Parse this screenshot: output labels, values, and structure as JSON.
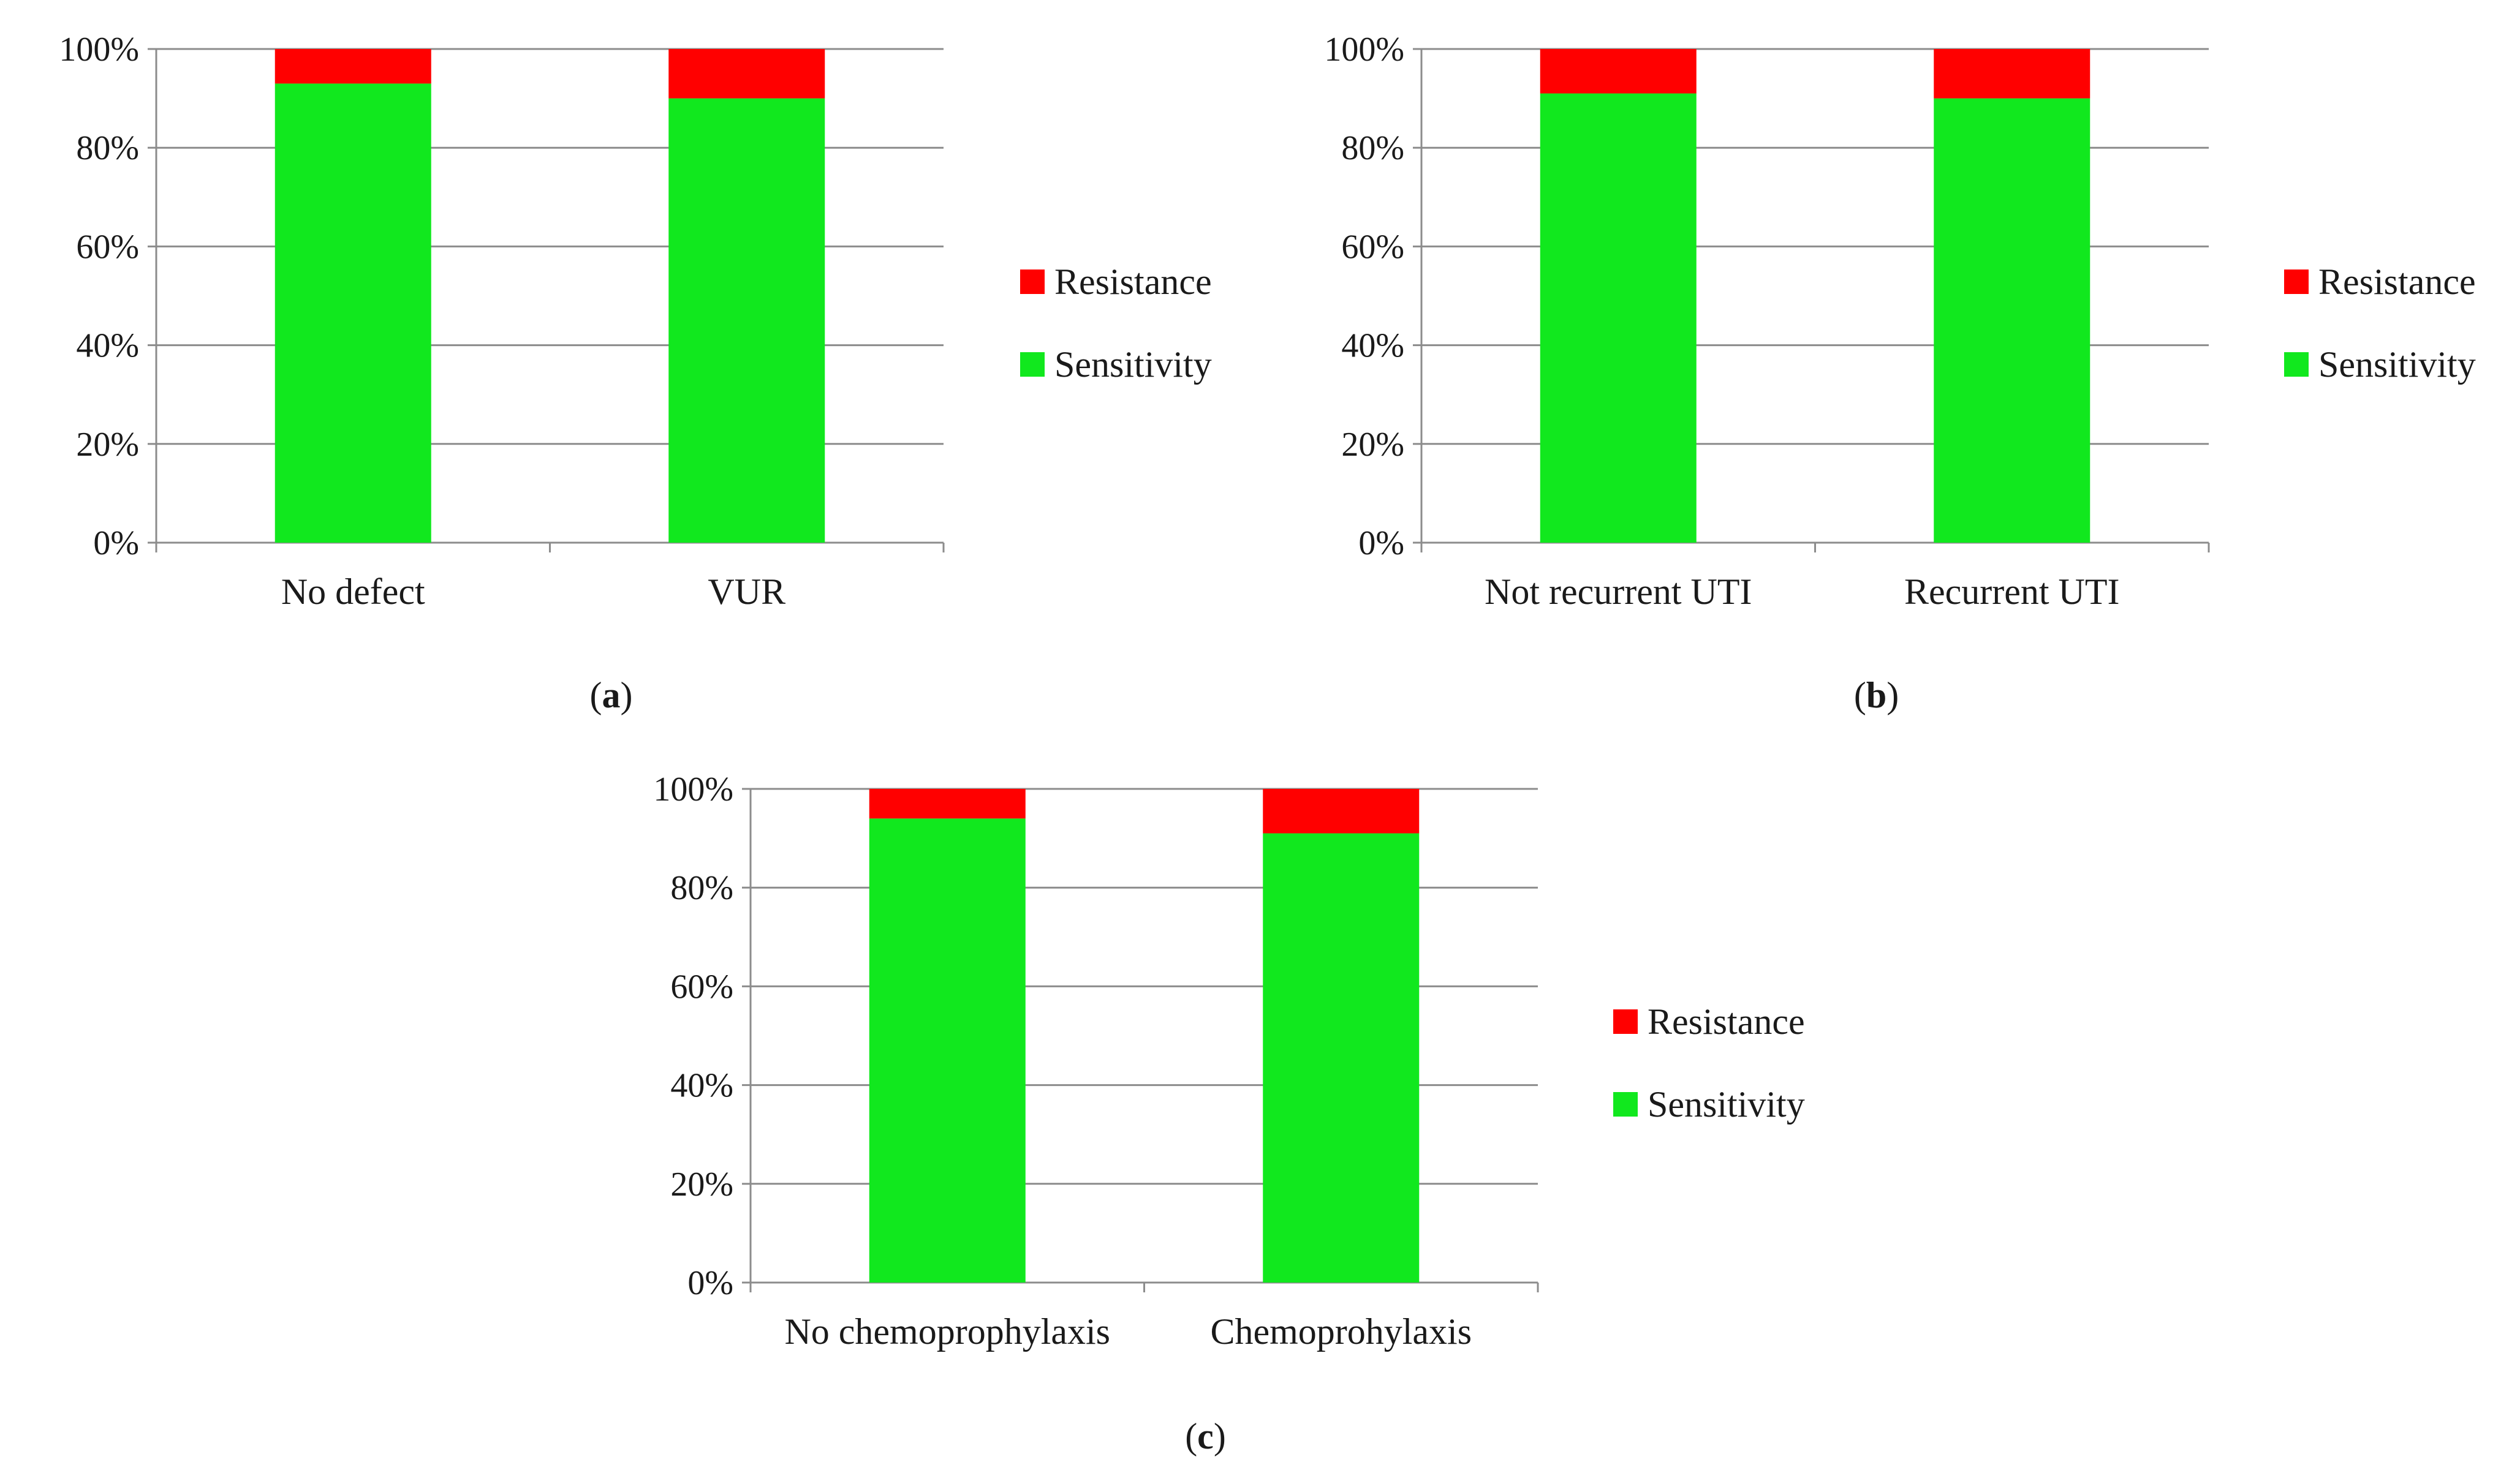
{
  "colors": {
    "resistance": "#ff0000",
    "sensitivity": "#11e81e",
    "grid": "#8c8c8c",
    "text": "#1a1a1a"
  },
  "chart_data": [
    {
      "id": "a",
      "type": "bar",
      "stacked": true,
      "caption_letter": "a",
      "categories": [
        "No defect",
        "VUR"
      ],
      "series": [
        {
          "name": "Sensitivity",
          "values": [
            93,
            90
          ]
        },
        {
          "name": "Resistance",
          "values": [
            7,
            10
          ]
        }
      ],
      "ylim": [
        0,
        100
      ],
      "yticks": [
        "0%",
        "20%",
        "40%",
        "60%",
        "80%",
        "100%"
      ],
      "legend": [
        "Resistance",
        "Sensitivity"
      ],
      "legend_position": "right"
    },
    {
      "id": "b",
      "type": "bar",
      "stacked": true,
      "caption_letter": "b",
      "categories": [
        "Not recurrent UTI",
        "Recurrent UTI"
      ],
      "series": [
        {
          "name": "Sensitivity",
          "values": [
            91,
            90
          ]
        },
        {
          "name": "Resistance",
          "values": [
            9,
            10
          ]
        }
      ],
      "ylim": [
        0,
        100
      ],
      "yticks": [
        "0%",
        "20%",
        "40%",
        "60%",
        "80%",
        "100%"
      ],
      "legend": [
        "Resistance",
        "Sensitivity"
      ],
      "legend_position": "right"
    },
    {
      "id": "c",
      "type": "bar",
      "stacked": true,
      "caption_letter": "c",
      "categories": [
        "No chemoprophylaxis",
        "Chemoprohylaxis"
      ],
      "series": [
        {
          "name": "Sensitivity",
          "values": [
            94,
            91
          ]
        },
        {
          "name": "Resistance",
          "values": [
            6,
            9
          ]
        }
      ],
      "ylim": [
        0,
        100
      ],
      "yticks": [
        "0%",
        "20%",
        "40%",
        "60%",
        "80%",
        "100%"
      ],
      "legend": [
        "Resistance",
        "Sensitivity"
      ],
      "legend_position": "right"
    }
  ]
}
